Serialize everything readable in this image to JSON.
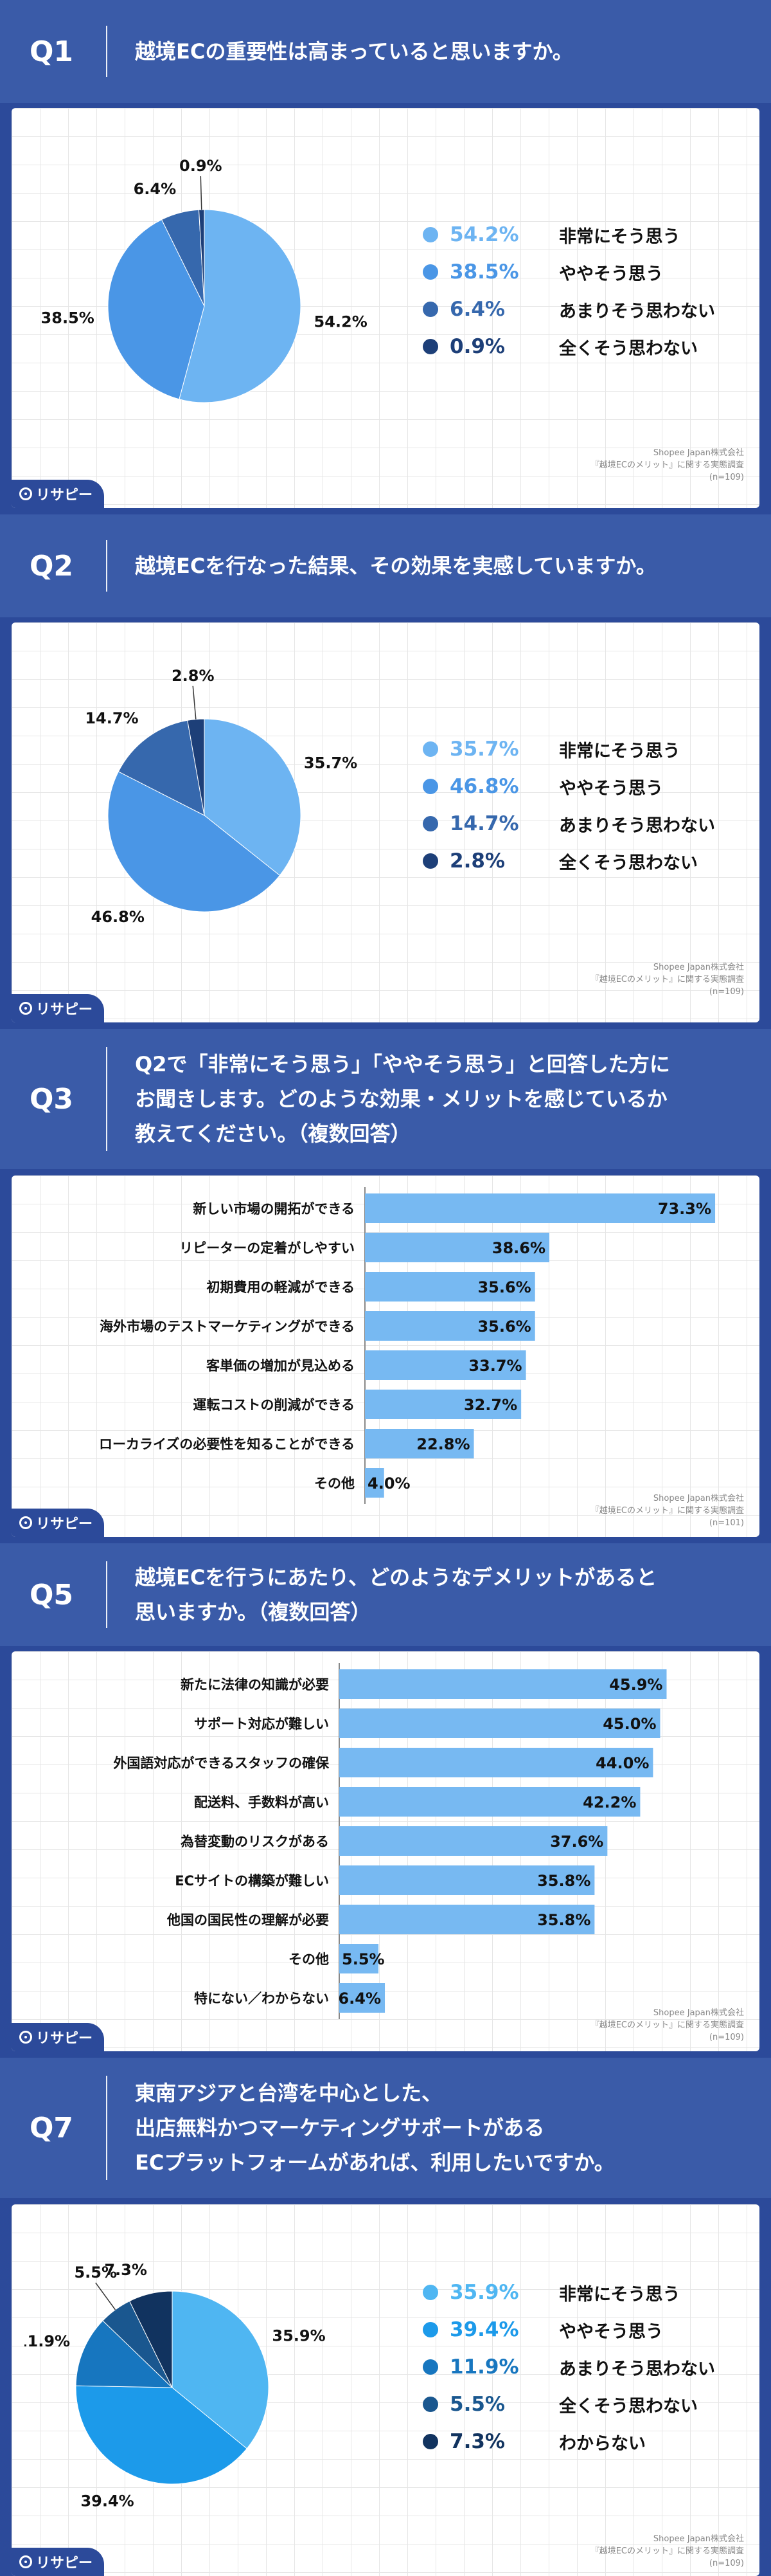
{
  "brand": "リサピー",
  "source": [
    "Shopee Japan株式会社",
    "『越境ECのメリット』に関する実態調査"
  ],
  "sections": [
    {
      "q": "Q1",
      "question": "越境ECの重要性は高まっていると思いますか。",
      "n": "(n=109)"
    },
    {
      "q": "Q2",
      "question": "越境ECを行なった結果、その効果を実感していますか。",
      "n": "(n=109)"
    },
    {
      "q": "Q3",
      "question": "Q2で「非常にそう思う」「ややそう思う」と回答した方に\nお聞きします。どのような効果・メリットを感じているか\n教えてください。（複数回答）",
      "n": "(n=101)"
    },
    {
      "q": "Q5",
      "question": "越境ECを行うにあたり、どのようなデメリットがあると\n思いますか。（複数回答）",
      "n": "(n=109)"
    },
    {
      "q": "Q7",
      "question": "東南アジアと台湾を中心とした、\n出店無料かつマーケティングサポートがある\nECプラットフォームがあれば、利用したいですか。",
      "n": "(n=109)"
    }
  ],
  "chart_data": [
    {
      "type": "pie",
      "categories": [
        "非常にそう思う",
        "ややそう思う",
        "あまりそう思わない",
        "全くそう思わない"
      ],
      "values": [
        54.2,
        38.5,
        6.4,
        0.9
      ],
      "labels": [
        "54.2%",
        "38.5%",
        "6.4%",
        "0.9%"
      ],
      "colors": [
        "#6db4f2",
        "#4a96e6",
        "#3668ad",
        "#1d3f78"
      ]
    },
    {
      "type": "pie",
      "categories": [
        "非常にそう思う",
        "ややそう思う",
        "あまりそう思わない",
        "全くそう思わない"
      ],
      "values": [
        35.7,
        46.8,
        14.7,
        2.8
      ],
      "labels": [
        "35.7%",
        "46.8%",
        "14.7%",
        "2.8%"
      ],
      "colors": [
        "#6db4f2",
        "#4a96e6",
        "#3668ad",
        "#1d3f78"
      ]
    },
    {
      "type": "bar",
      "categories": [
        "新しい市場の開拓ができる",
        "リピーターの定着がしやすい",
        "初期費用の軽減ができる",
        "海外市場のテストマーケティングができる",
        "客単価の増加が見込める",
        "運転コストの削減ができる",
        "ローカライズの必要性を知ることができる",
        "その他"
      ],
      "values": [
        73.3,
        38.6,
        35.6,
        35.6,
        33.7,
        32.7,
        22.8,
        4.0
      ],
      "labels": [
        "73.3%",
        "38.6%",
        "35.6%",
        "35.6%",
        "33.7%",
        "32.7%",
        "22.8%",
        "4.0%"
      ],
      "color": "#77b9f2"
    },
    {
      "type": "bar",
      "categories": [
        "新たに法律の知識が必要",
        "サポート対応が難しい",
        "外国語対応ができるスタッフの確保",
        "配送料、手数料が高い",
        "為替変動のリスクがある",
        "ECサイトの構築が難しい",
        "他国の国民性の理解が必要",
        "その他",
        "特にない／わからない"
      ],
      "values": [
        45.9,
        45.0,
        44.0,
        42.2,
        37.6,
        35.8,
        35.8,
        5.5,
        6.4
      ],
      "labels": [
        "45.9%",
        "45.0%",
        "44.0%",
        "42.2%",
        "37.6%",
        "35.8%",
        "35.8%",
        "5.5%",
        "6.4%"
      ],
      "color": "#77b9f2"
    },
    {
      "type": "pie",
      "categories": [
        "非常にそう思う",
        "ややそう思う",
        "あまりそう思わない",
        "全くそう思わない",
        "わからない"
      ],
      "values": [
        35.9,
        39.4,
        11.9,
        5.5,
        7.3
      ],
      "labels": [
        "35.9%",
        "39.4%",
        "11.9%",
        "5.5%",
        "7.3%"
      ],
      "colors": [
        "#4fb6f2",
        "#1c9aea",
        "#1776bf",
        "#1a578f",
        "#11335f"
      ]
    }
  ]
}
